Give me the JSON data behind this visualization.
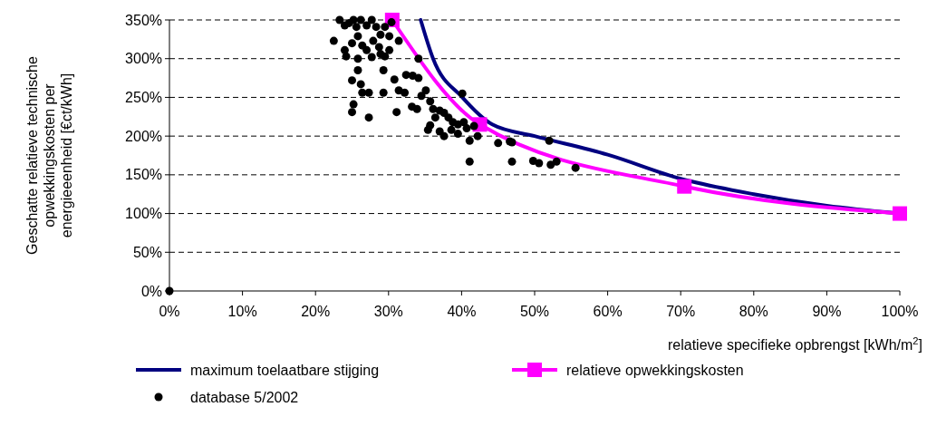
{
  "chart_data": {
    "type": "line",
    "xlabel": "relatieve specifieke opbrengst [kWh/m$^{2}$]",
    "ylabel": "Geschatte relatieve technische opwekkingskosten per energieeenheid [€ct/kWh]",
    "xlim": [
      0,
      100
    ],
    "ylim": [
      0,
      350
    ],
    "xticks": [
      {
        "value": 0,
        "label": "0%"
      },
      {
        "value": 10,
        "label": "10%"
      },
      {
        "value": 20,
        "label": "20%"
      },
      {
        "value": 30,
        "label": "30%"
      },
      {
        "value": 40,
        "label": "40%"
      },
      {
        "value": 50,
        "label": "50%"
      },
      {
        "value": 60,
        "label": "60%"
      },
      {
        "value": 70,
        "label": "70%"
      },
      {
        "value": 80,
        "label": "80%"
      },
      {
        "value": 90,
        "label": "90%"
      },
      {
        "value": 100,
        "label": "100%"
      }
    ],
    "yticks": [
      {
        "value": 0,
        "label": "0%"
      },
      {
        "value": 50,
        "label": "50%"
      },
      {
        "value": 100,
        "label": "100%"
      },
      {
        "value": 150,
        "label": "150%"
      },
      {
        "value": 200,
        "label": "200%"
      },
      {
        "value": 250,
        "label": "250%"
      },
      {
        "value": 300,
        "label": "300%"
      },
      {
        "value": 350,
        "label": "350%"
      }
    ],
    "grid": "y",
    "legend": "bottom",
    "line_style": "solid",
    "series": [
      {
        "name": "maximum toelaatbare stijging",
        "color": "#000080",
        "marker": "none",
        "x": [
          34.4,
          36.1,
          40.1,
          44.2,
          50,
          60,
          70,
          80,
          90,
          100
        ],
        "values": [
          350,
          300,
          250,
          215,
          200,
          176,
          145,
          125,
          110,
          100
        ]
      },
      {
        "name": "relatieve opwekkingskosten",
        "color": "#ff00ff",
        "marker": "square",
        "x": [
          30.5,
          42.5,
          70.5,
          100
        ],
        "values": [
          350,
          215,
          135,
          100
        ]
      },
      {
        "name": "database 5/2002",
        "type": "scatter",
        "color": "#000000",
        "marker": "circle",
        "x": [
          0,
          22.5,
          23.3,
          24,
          24.6,
          25.2,
          25.6,
          26.2,
          27,
          27.7,
          28.3,
          28.9,
          29.5,
          30.1,
          30.4,
          31.4,
          25.8,
          26.4,
          27,
          27.9,
          28.7,
          24,
          25,
          28.9,
          30.1,
          34.1,
          24.2,
          25.8,
          27.7,
          29.5,
          25.8,
          25,
          26.2,
          26.4,
          27.3,
          25.2,
          25,
          27.3,
          29.3,
          29.3,
          30.8,
          31.4,
          32.4,
          33.3,
          34.1,
          31.1,
          32.2,
          33.2,
          33.9,
          34.5,
          35.1,
          35.7,
          36.1,
          36.4,
          37,
          37.6,
          38.2,
          38.8,
          39.5,
          38.6,
          39.5,
          40.3,
          40.7,
          41.1,
          41.7,
          42.2,
          40.1,
          35.4,
          35.7,
          37,
          37.6,
          41.1,
          45,
          46.6,
          46.9,
          46.9,
          49.8,
          50.6,
          52.2,
          53,
          55.6,
          52
        ],
        "values": [
          0,
          323,
          350,
          343,
          346,
          350,
          341,
          350,
          343,
          350,
          341,
          331,
          341,
          329,
          347,
          323,
          329,
          317,
          311,
          323,
          315,
          311,
          320,
          306,
          311,
          300,
          303,
          300,
          302,
          303,
          285,
          272,
          267,
          256,
          256,
          241,
          231,
          224,
          256,
          285,
          273,
          259,
          279,
          278,
          275,
          231,
          256,
          238,
          235,
          252,
          259,
          245,
          235,
          224,
          233,
          230,
          224,
          218,
          215,
          208,
          203,
          218,
          210,
          194,
          213,
          200,
          255,
          208,
          214,
          206,
          200,
          167,
          191,
          193,
          192,
          167,
          168,
          165,
          163,
          167,
          159,
          194
        ]
      }
    ]
  }
}
